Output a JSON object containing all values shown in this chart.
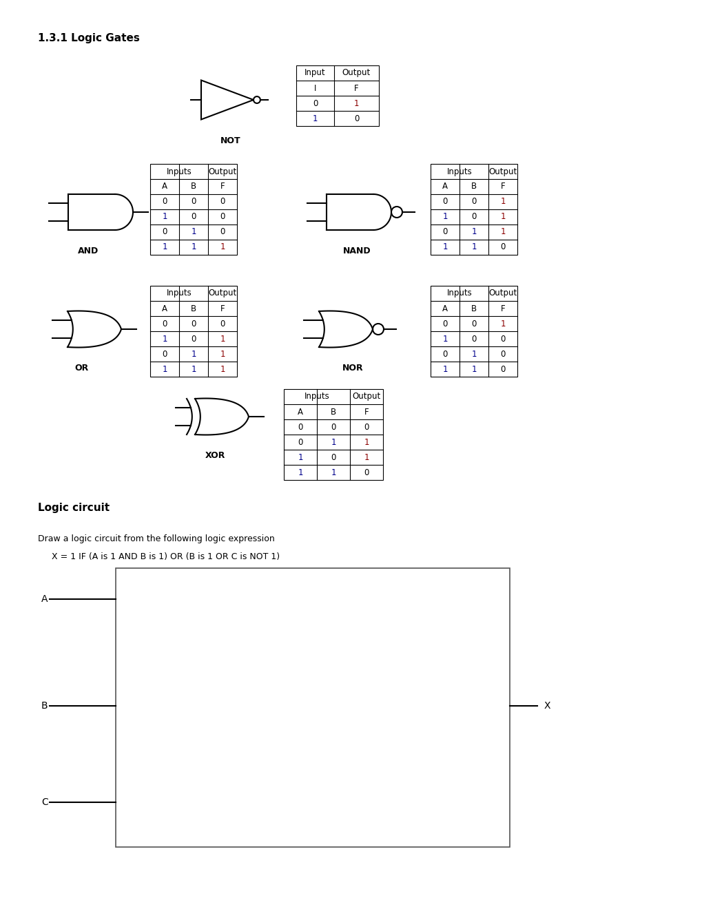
{
  "title": "1.3.1 Logic Gates",
  "bg_color": "#ffffff",
  "not_table": {
    "headers": [
      "Input",
      "Output"
    ],
    "col_headers": [
      "I",
      "F"
    ],
    "rows": [
      [
        "0",
        "1"
      ],
      [
        "1",
        "0"
      ]
    ]
  },
  "and_table": {
    "headers": [
      "Inputs",
      "Output"
    ],
    "col_headers": [
      "A",
      "B",
      "F"
    ],
    "rows": [
      [
        "0",
        "0",
        "0"
      ],
      [
        "1",
        "0",
        "0"
      ],
      [
        "0",
        "1",
        "0"
      ],
      [
        "1",
        "1",
        "1"
      ]
    ]
  },
  "nand_table": {
    "headers": [
      "Inputs",
      "Output"
    ],
    "col_headers": [
      "A",
      "B",
      "F"
    ],
    "rows": [
      [
        "0",
        "0",
        "1"
      ],
      [
        "1",
        "0",
        "1"
      ],
      [
        "0",
        "1",
        "1"
      ],
      [
        "1",
        "1",
        "0"
      ]
    ]
  },
  "or_table": {
    "headers": [
      "Inputs",
      "Output"
    ],
    "col_headers": [
      "A",
      "B",
      "F"
    ],
    "rows": [
      [
        "0",
        "0",
        "0"
      ],
      [
        "1",
        "0",
        "1"
      ],
      [
        "0",
        "1",
        "1"
      ],
      [
        "1",
        "1",
        "1"
      ]
    ]
  },
  "nor_table": {
    "headers": [
      "Inputs",
      "Output"
    ],
    "col_headers": [
      "A",
      "B",
      "F"
    ],
    "rows": [
      [
        "0",
        "0",
        "1"
      ],
      [
        "1",
        "0",
        "0"
      ],
      [
        "0",
        "1",
        "0"
      ],
      [
        "1",
        "1",
        "0"
      ]
    ]
  },
  "xor_table": {
    "headers": [
      "Inputs",
      "Output"
    ],
    "col_headers": [
      "A",
      "B",
      "F"
    ],
    "rows": [
      [
        "0",
        "0",
        "0"
      ],
      [
        "0",
        "1",
        "1"
      ],
      [
        "1",
        "0",
        "1"
      ],
      [
        "1",
        "1",
        "0"
      ]
    ]
  },
  "logic_circuit_title": "Logic circuit",
  "logic_circuit_desc": "Draw a logic circuit from the following logic expression",
  "logic_circuit_expr": "     X = 1 IF (A is 1 AND B is 1) OR (B is 1 OR C is NOT 1)"
}
